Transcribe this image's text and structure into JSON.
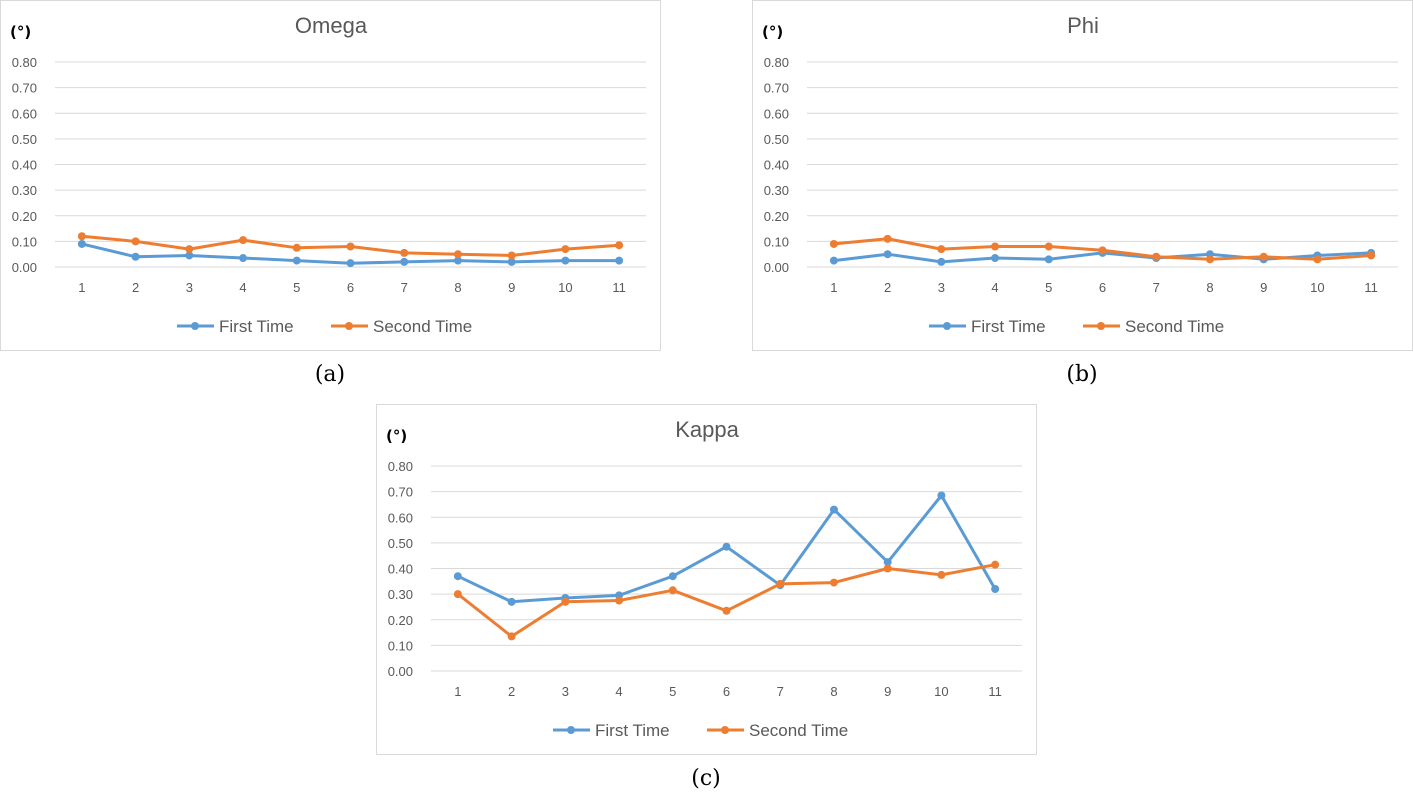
{
  "chart_data": [
    {
      "type": "line",
      "title": "Omega",
      "unit_label": "(°)",
      "caption": "(a)",
      "categories": [
        "1",
        "2",
        "3",
        "4",
        "5",
        "6",
        "7",
        "8",
        "9",
        "10",
        "11"
      ],
      "yticks": [
        "0.00",
        "0.10",
        "0.20",
        "0.30",
        "0.40",
        "0.50",
        "0.60",
        "0.70",
        "0.80"
      ],
      "ylim": [
        0,
        0.8
      ],
      "grid": true,
      "legend_position": "bottom",
      "series": [
        {
          "name": "First Time",
          "color": "#5b9bd5",
          "values": [
            0.09,
            0.04,
            0.045,
            0.035,
            0.025,
            0.015,
            0.02,
            0.025,
            0.02,
            0.025,
            0.025
          ]
        },
        {
          "name": "Second Time",
          "color": "#ed7d31",
          "values": [
            0.12,
            0.1,
            0.07,
            0.105,
            0.075,
            0.08,
            0.055,
            0.05,
            0.045,
            0.07,
            0.085
          ]
        }
      ]
    },
    {
      "type": "line",
      "title": "Phi",
      "unit_label": "(°)",
      "caption": "(b)",
      "categories": [
        "1",
        "2",
        "3",
        "4",
        "5",
        "6",
        "7",
        "8",
        "9",
        "10",
        "11"
      ],
      "yticks": [
        "0.00",
        "0.10",
        "0.20",
        "0.30",
        "0.40",
        "0.50",
        "0.60",
        "0.70",
        "0.80"
      ],
      "ylim": [
        0,
        0.8
      ],
      "grid": true,
      "legend_position": "bottom",
      "series": [
        {
          "name": "First Time",
          "color": "#5b9bd5",
          "values": [
            0.025,
            0.05,
            0.02,
            0.035,
            0.03,
            0.055,
            0.035,
            0.05,
            0.03,
            0.045,
            0.055
          ]
        },
        {
          "name": "Second Time",
          "color": "#ed7d31",
          "values": [
            0.09,
            0.11,
            0.07,
            0.08,
            0.08,
            0.065,
            0.04,
            0.03,
            0.04,
            0.03,
            0.045
          ]
        }
      ]
    },
    {
      "type": "line",
      "title": "Kappa",
      "unit_label": "(°)",
      "caption": "(c)",
      "categories": [
        "1",
        "2",
        "3",
        "4",
        "5",
        "6",
        "7",
        "8",
        "9",
        "10",
        "11"
      ],
      "yticks": [
        "0.00",
        "0.10",
        "0.20",
        "0.30",
        "0.40",
        "0.50",
        "0.60",
        "0.70",
        "0.80"
      ],
      "ylim": [
        0,
        0.8
      ],
      "grid": true,
      "legend_position": "bottom",
      "series": [
        {
          "name": "First Time",
          "color": "#5b9bd5",
          "values": [
            0.37,
            0.27,
            0.285,
            0.295,
            0.37,
            0.485,
            0.335,
            0.63,
            0.425,
            0.685,
            0.32
          ]
        },
        {
          "name": "Second Time",
          "color": "#ed7d31",
          "values": [
            0.3,
            0.135,
            0.27,
            0.275,
            0.315,
            0.235,
            0.34,
            0.345,
            0.4,
            0.375,
            0.415
          ]
        }
      ]
    }
  ]
}
